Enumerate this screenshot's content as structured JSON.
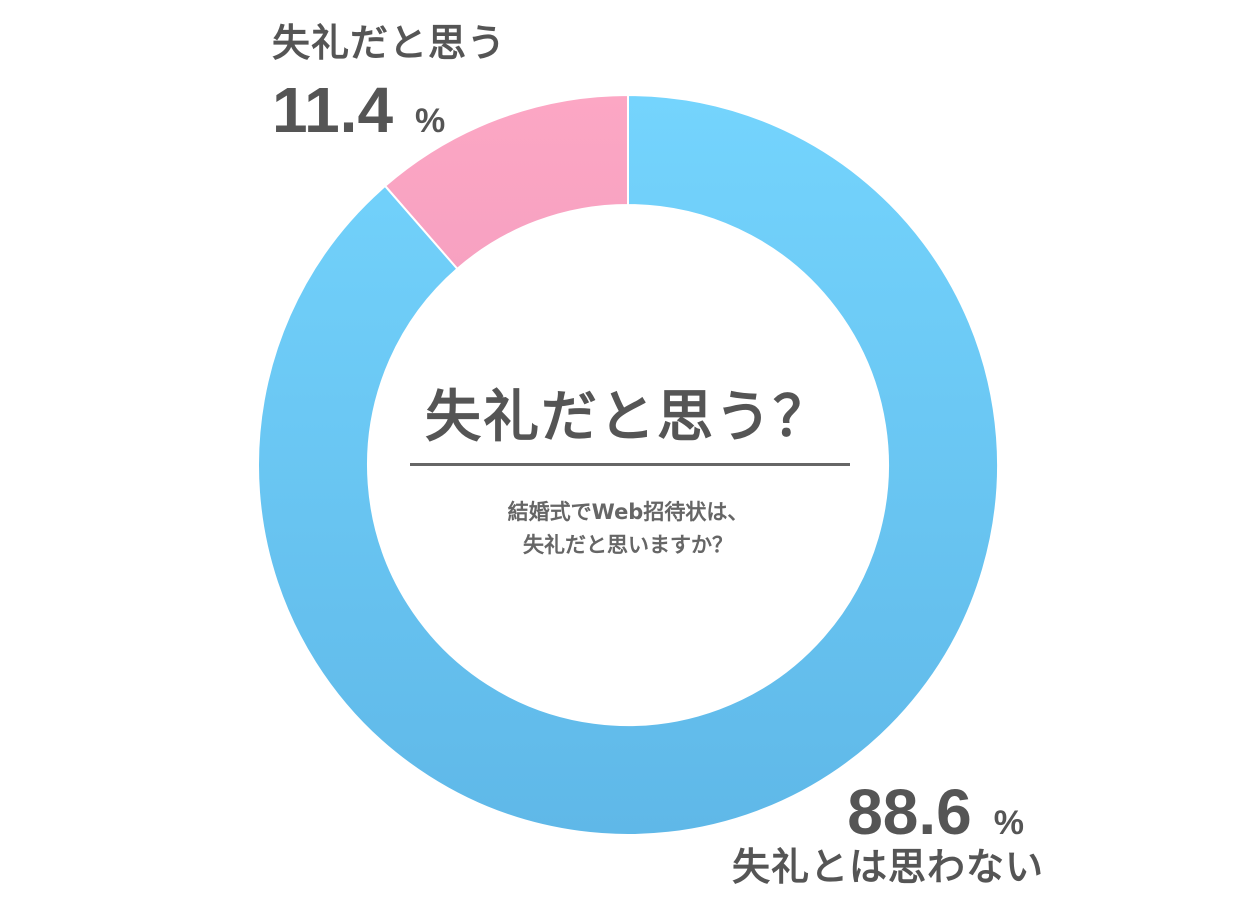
{
  "chart_data": {
    "type": "pie",
    "style": "donut",
    "title": "失礼だと思う？",
    "subtitle_line1": "結婚式でWeb招待状は、",
    "subtitle_line2": "失礼だと思いますか？",
    "unit": "%",
    "slices": [
      {
        "name": "失礼だと思う",
        "value": 11.4,
        "value_text": "11.4",
        "color": "#F9A6C3"
      },
      {
        "name": "失礼とは思わない",
        "value": 88.6,
        "value_text": "88.6",
        "color": "#6CCFF6"
      }
    ]
  }
}
